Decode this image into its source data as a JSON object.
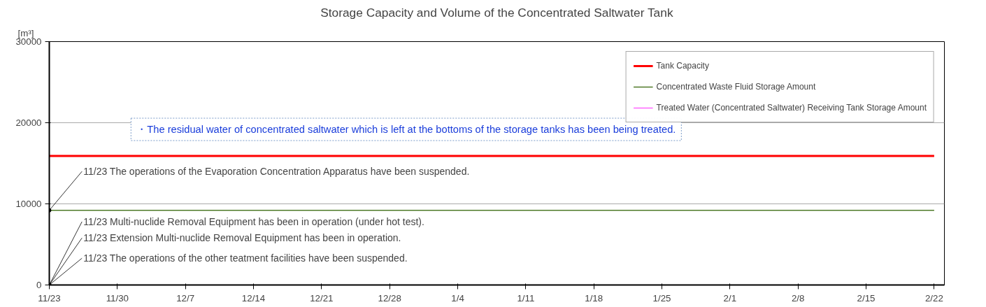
{
  "chart_data": {
    "type": "line",
    "title": "Storage Capacity and Volume of the Concentrated Saltwater Tank",
    "ylabel": "[m³]",
    "categories": [
      "11/23",
      "11/30",
      "12/7",
      "12/14",
      "12/21",
      "12/28",
      "1/4",
      "1/11",
      "1/18",
      "1/25",
      "2/1",
      "2/8",
      "2/15",
      "2/22"
    ],
    "series": [
      {
        "name": "Tank Capacity",
        "color": "#ff0000",
        "values": [
          15900,
          15900,
          15900,
          15900,
          15900,
          15900,
          15900,
          15900,
          15900,
          15900,
          15900,
          15900,
          15900,
          15900
        ]
      },
      {
        "name": "Concentrated Waste Fluid Storage Amount",
        "color": "#4f7a28",
        "values": [
          9200,
          9200,
          9200,
          9200,
          9200,
          9200,
          9200,
          9200,
          9200,
          9200,
          9200,
          9200,
          9200,
          9200
        ]
      },
      {
        "name": "Treated Water (Concentrated Saltwater) Receiving Tank Storage Amount",
        "color": "#ff66ff",
        "values": [
          null,
          null,
          null,
          null,
          null,
          null,
          null,
          null,
          null,
          null,
          null,
          null,
          null,
          null
        ]
      }
    ],
    "ylim": [
      0,
      30000
    ],
    "yticks": [
      0,
      10000,
      20000,
      30000
    ],
    "grid": "y",
    "legend": "top right",
    "marker": "none",
    "line_style": "solid",
    "annotations": [
      "・The residual water of concentrated saltwater which is left at the bottoms of the storage tanks has been being treated.",
      {
        "text": "11/23  The operations of the Evaporation Concentration Apparatus have been suspended.",
        "x": "11/23",
        "y": 9200
      },
      "11/23  Multi-nuclide Removal Equipment has been in operation (under hot test).",
      "11/23  Extension Multi-nuclide Removal Equipment has been in operation.",
      "11/23   The operations of the other teatment facilities have been suspended."
    ]
  }
}
